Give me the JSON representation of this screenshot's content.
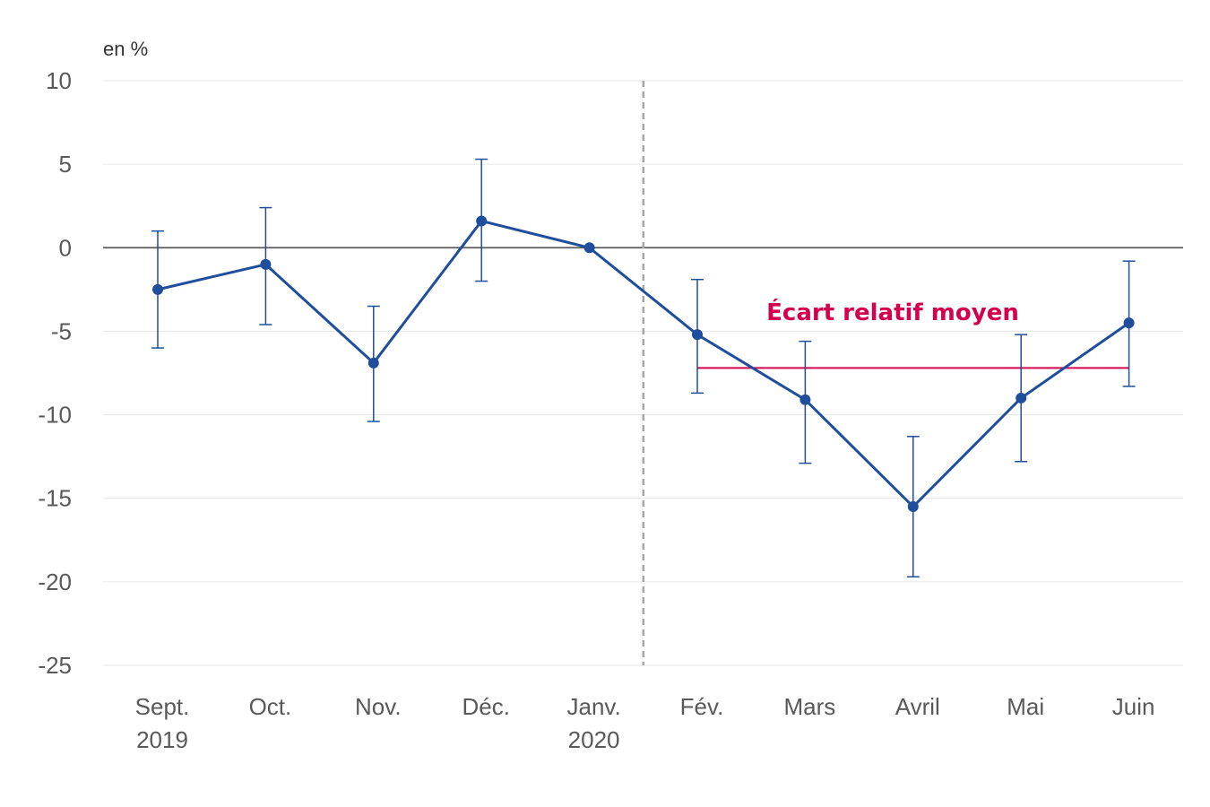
{
  "chart_data": {
    "type": "line",
    "unit_label": "en %",
    "ylim": [
      -25,
      10
    ],
    "yticks": [
      10,
      5,
      0,
      -5,
      -10,
      -15,
      -20,
      -25
    ],
    "grid": true,
    "categories": [
      [
        "Sept.",
        "2019"
      ],
      [
        "Oct."
      ],
      [
        "Nov."
      ],
      [
        "Déc."
      ],
      [
        "Janv.",
        "2020"
      ],
      [
        "Fév."
      ],
      [
        "Mars"
      ],
      [
        "Avril"
      ],
      [
        "Mai"
      ],
      [
        "Juin"
      ]
    ],
    "series": [
      {
        "values": [
          -2.5,
          -1.0,
          -6.9,
          1.6,
          0.0,
          -5.2,
          -9.1,
          -15.5,
          -9.0,
          -4.5
        ],
        "err_low": [
          -6.0,
          -4.6,
          -10.4,
          -2.0,
          null,
          -8.7,
          -12.9,
          -19.7,
          -12.8,
          -8.3
        ],
        "err_high": [
          1.0,
          2.4,
          -3.5,
          5.3,
          null,
          -1.9,
          -5.6,
          -11.3,
          -5.2,
          -0.8
        ],
        "color": "#1f4e9c"
      }
    ],
    "divider_after_category": 4,
    "annotation": {
      "label": "Écart relatif moyen",
      "value": -7.2,
      "from_category": 5,
      "to_category": 9,
      "color": "#d4004f"
    }
  }
}
